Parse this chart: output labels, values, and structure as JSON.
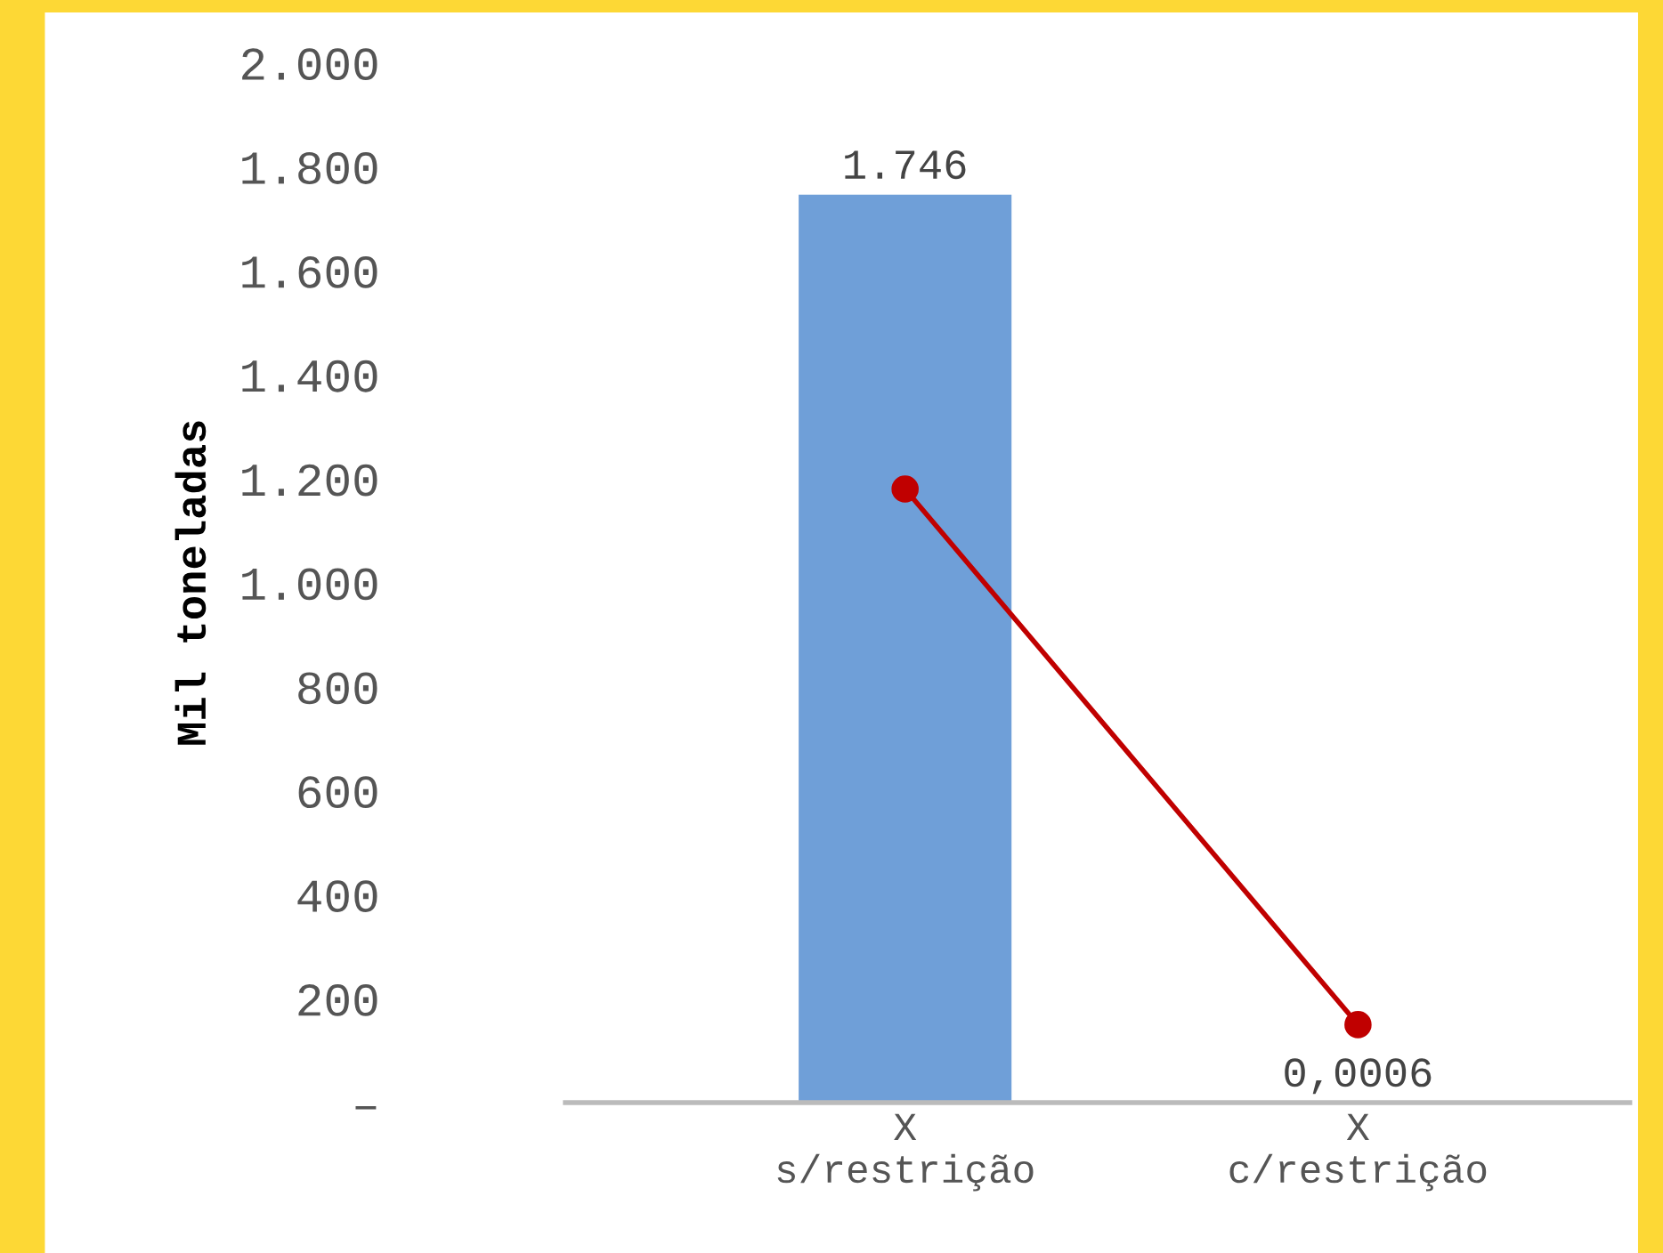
{
  "chart_data": {
    "type": "bar",
    "ylabel": "Mil toneladas",
    "categories": [
      "X\ns/restrição",
      "X\nc/restrição"
    ],
    "series": [
      {
        "color": "#6f9fd8",
        "values": [
          1746,
          0.0006
        ],
        "value_labels": [
          "1.746",
          "0,0006"
        ]
      },
      {
        "type": "line",
        "color": "#c00000",
        "values": [
          1180,
          150
        ],
        "marker": "circle"
      }
    ],
    "ylim": [
      0,
      2000
    ],
    "yticks": [
      {
        "value": 0,
        "label": "–"
      },
      {
        "value": 200,
        "label": "200"
      },
      {
        "value": 400,
        "label": "400"
      },
      {
        "value": 600,
        "label": "600"
      },
      {
        "value": 800,
        "label": "800"
      },
      {
        "value": 1000,
        "label": "1.000"
      },
      {
        "value": 1200,
        "label": "1.200"
      },
      {
        "value": 1400,
        "label": "1.400"
      },
      {
        "value": 1600,
        "label": "1.600"
      },
      {
        "value": 1800,
        "label": "1.800"
      },
      {
        "value": 2000,
        "label": "2.000"
      }
    ],
    "grid": false,
    "legend": false
  }
}
